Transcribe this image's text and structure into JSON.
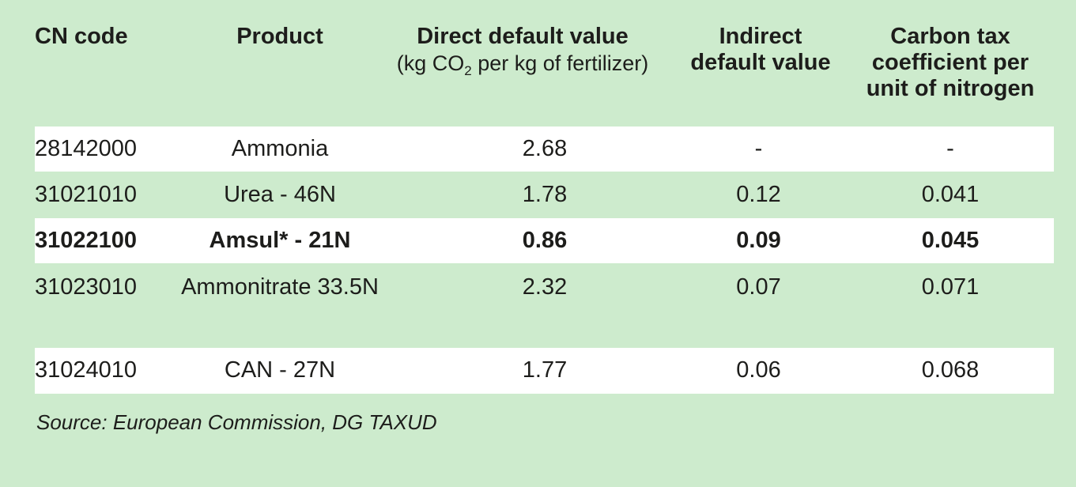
{
  "columns": {
    "cn_code": "CN code",
    "product": "Product",
    "direct_title": "Direct default value",
    "direct_sub_pre": "(kg CO",
    "direct_sub_subscript": "2",
    "direct_sub_post": " per kg of fertilizer)",
    "indirect_line1": "Indirect",
    "indirect_line2": "default value",
    "carbon_line1": "Carbon tax",
    "carbon_line2": "coefficient per",
    "carbon_line3": "unit of nitrogen"
  },
  "rows": [
    {
      "cn_code": "28142000",
      "product": "Ammonia",
      "direct": "2.68",
      "indirect": "-",
      "carbon": "-"
    },
    {
      "cn_code": "31021010",
      "product": "Urea - 46N",
      "direct": "1.78",
      "indirect": "0.12",
      "carbon": "0.041"
    },
    {
      "cn_code": "31022100",
      "product": "Amsul* - 21N",
      "direct": "0.86",
      "indirect": "0.09",
      "carbon": "0.045"
    },
    {
      "cn_code": "31023010",
      "product": "Ammonitrate 33.5N",
      "direct": "2.32",
      "indirect": "0.07",
      "carbon": "0.071"
    },
    {
      "cn_code": "31024010",
      "product": "CAN - 27N",
      "direct": "1.77",
      "indirect": "0.06",
      "carbon": "0.068"
    }
  ],
  "source": "Source: European Commission, DG TAXUD",
  "colors": {
    "background": "#cdebcd",
    "row_highlight": "#ffffff",
    "text": "#1d1d1b"
  }
}
